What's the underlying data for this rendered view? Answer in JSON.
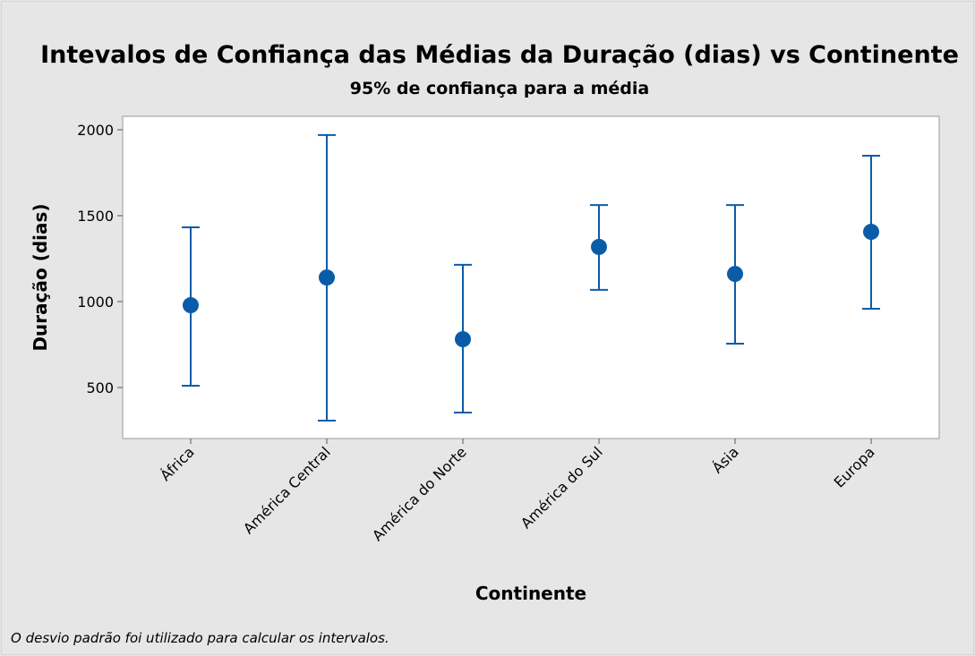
{
  "chart_data": {
    "type": "interval",
    "title": "Intevalos de Confiança das Médias da Duração (dias) vs Continente",
    "subtitle": "95% de confiança para a média",
    "x_label": "Continente",
    "y_label": "Duração (dias)",
    "footnote": "O desvio padrão foi utilizado para calcular os intervalos.",
    "categories": [
      "África",
      "América Central",
      "América do Norte",
      "América do Sul",
      "Ásia",
      "Europa"
    ],
    "values": [
      979,
      1140,
      781,
      1318,
      1161,
      1406
    ],
    "upper": [
      1432,
      1969,
      1214,
      1562,
      1562,
      1849
    ],
    "lower": [
      510,
      307,
      354,
      1068,
      755,
      958
    ],
    "color": "#0b5ca8",
    "ylim": [
      203,
      2078
    ],
    "yticks": [
      500,
      1000,
      1500,
      2000
    ],
    "grid": false
  }
}
